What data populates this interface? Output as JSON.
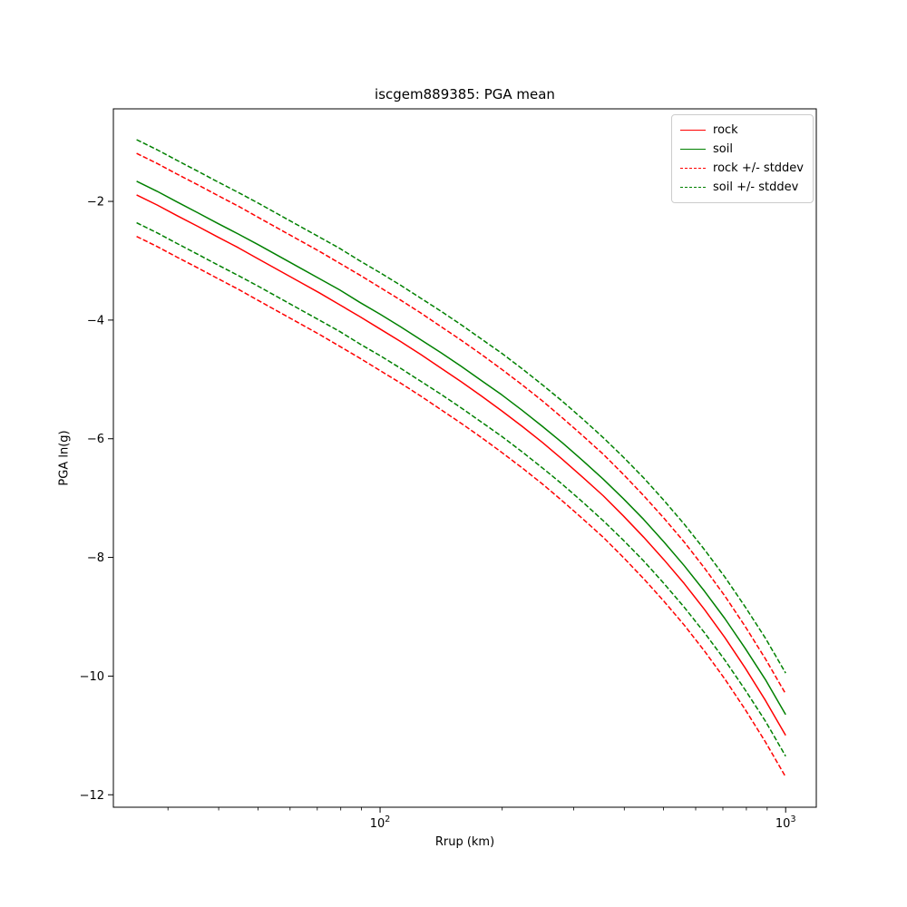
{
  "chart_data": {
    "type": "line",
    "title": "iscgem889385: PGA mean",
    "xlabel": "Rrup (km)",
    "ylabel": "PGA ln(g)",
    "x_scale": "log",
    "grid": false,
    "legend_position": "upper right",
    "xlim": [
      22,
      1190
    ],
    "ylim": [
      -12.21,
      -0.44
    ],
    "stddev": 0.7,
    "x_rrup_km": [
      25.1,
      28.2,
      31.6,
      35.5,
      39.8,
      44.7,
      50.1,
      56.2,
      63.1,
      70.8,
      79.4,
      89.1,
      100,
      112.2,
      125.9,
      141.3,
      158.5,
      177.8,
      199.5,
      223.9,
      251.2,
      281.8,
      316.2,
      354.8,
      398.1,
      446.7,
      501.2,
      562.3,
      631,
      708,
      794.3,
      891.3,
      1000
    ],
    "series": [
      {
        "name": "rock",
        "color": "#ff0000",
        "style": "solid",
        "values": [
          -1.89,
          -2.06,
          -2.24,
          -2.42,
          -2.6,
          -2.78,
          -2.97,
          -3.16,
          -3.35,
          -3.54,
          -3.74,
          -3.94,
          -4.15,
          -4.36,
          -4.58,
          -4.81,
          -5.04,
          -5.28,
          -5.53,
          -5.79,
          -6.06,
          -6.35,
          -6.65,
          -6.96,
          -7.3,
          -7.66,
          -8.04,
          -8.44,
          -8.88,
          -9.35,
          -9.86,
          -10.41,
          -11.0
        ]
      },
      {
        "name": "soil",
        "color": "#008000",
        "style": "solid",
        "values": [
          -1.66,
          -1.83,
          -2.01,
          -2.19,
          -2.37,
          -2.55,
          -2.73,
          -2.92,
          -3.11,
          -3.3,
          -3.49,
          -3.7,
          -3.9,
          -4.11,
          -4.33,
          -4.55,
          -4.78,
          -5.02,
          -5.26,
          -5.52,
          -5.79,
          -6.07,
          -6.37,
          -6.68,
          -7.01,
          -7.36,
          -7.74,
          -8.14,
          -8.57,
          -9.03,
          -9.53,
          -10.06,
          -10.65
        ]
      }
    ],
    "band_series": [
      {
        "name": "rock +/- stddev",
        "base": "rock",
        "color": "#ff0000",
        "style": "dashed"
      },
      {
        "name": "soil +/- stddev",
        "base": "soil",
        "color": "#008000",
        "style": "dashed"
      }
    ],
    "xticks": [
      {
        "value": 100,
        "base": "10",
        "exp": "2"
      },
      {
        "value": 1000,
        "base": "10",
        "exp": "3"
      }
    ],
    "yticks": [
      {
        "value": -2,
        "label": "−2"
      },
      {
        "value": -4,
        "label": "−4"
      },
      {
        "value": -6,
        "label": "−6"
      },
      {
        "value": -8,
        "label": "−8"
      },
      {
        "value": -10,
        "label": "−10"
      },
      {
        "value": -12,
        "label": "−12"
      }
    ],
    "legend": [
      {
        "label": "rock",
        "color": "#ff0000",
        "dashed": false
      },
      {
        "label": "soil",
        "color": "#008000",
        "dashed": false
      },
      {
        "label": "rock +/- stddev",
        "color": "#ff0000",
        "dashed": true
      },
      {
        "label": "soil +/- stddev",
        "color": "#008000",
        "dashed": true
      }
    ]
  }
}
